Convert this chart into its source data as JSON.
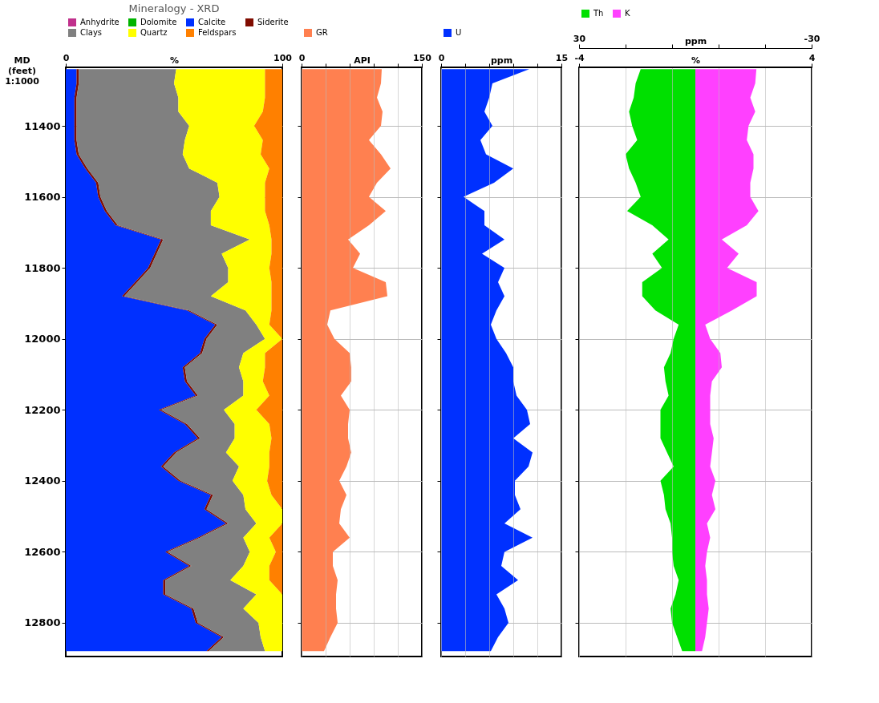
{
  "chart_data": [
    {
      "type": "area",
      "title": "Mineralogy - XRD",
      "xlabel": "%",
      "ylabel": "MD\n(feet)\n1:1000",
      "orientation": "horizontal",
      "stacked": true,
      "legend": "top",
      "grid": "y",
      "x": [
        11240,
        11280,
        11320,
        11360,
        11400,
        11440,
        11480,
        11520,
        11560,
        11600,
        11640,
        11680,
        11720,
        11760,
        11800,
        11840,
        11880,
        11920,
        11960,
        12000,
        12040,
        12080,
        12120,
        12160,
        12200,
        12240,
        12280,
        12320,
        12360,
        12400,
        12440,
        12480,
        12520,
        12560,
        12600,
        12640,
        12680,
        12720,
        12760,
        12800,
        12840,
        12880
      ],
      "xlim": [
        0,
        100
      ],
      "xticks": [
        0,
        100
      ],
      "ylim": [
        12895,
        11235
      ],
      "yticks": [
        11400,
        11600,
        11800,
        12000,
        12200,
        12400,
        12600,
        12800
      ],
      "series": [
        {
          "name": "Anhydrite",
          "color": "#c0308c",
          "values": [
            null,
            null,
            null,
            null,
            null,
            null,
            null,
            null,
            null,
            null,
            null,
            null,
            null,
            null,
            null,
            null,
            null,
            null,
            null,
            null,
            null,
            null,
            null,
            null,
            null,
            null,
            null,
            null,
            null,
            null,
            null,
            null,
            null,
            null,
            null,
            null,
            null,
            null,
            null,
            null,
            null,
            null
          ]
        },
        {
          "name": "Dolomite",
          "color": "#00b400",
          "values": [
            null,
            null,
            null,
            null,
            null,
            null,
            null,
            null,
            null,
            null,
            null,
            null,
            null,
            null,
            null,
            null,
            null,
            null,
            null,
            null,
            null,
            null,
            null,
            null,
            null,
            null,
            null,
            null,
            null,
            null,
            null,
            null,
            null,
            null,
            null,
            null,
            null,
            null,
            null,
            null,
            null,
            null
          ]
        },
        {
          "name": "Calcite",
          "color": "#0030ff",
          "values": [
            5,
            5,
            4,
            4,
            4,
            4,
            5,
            9,
            14,
            15,
            18,
            23,
            44,
            41,
            38,
            32,
            26,
            56,
            69,
            64,
            62,
            54,
            55,
            60,
            43,
            55,
            61,
            50,
            44,
            52,
            67,
            64,
            74,
            61,
            46,
            57,
            45,
            45,
            58,
            60,
            72,
            65
          ]
        },
        {
          "name": "Siderite",
          "color": "#800c00",
          "values": [
            1,
            1,
            1,
            1,
            1,
            1,
            1,
            1,
            1,
            1,
            1,
            1,
            1,
            1,
            1,
            1,
            1,
            1,
            1,
            1,
            1,
            1,
            1,
            1,
            1,
            1,
            1,
            1,
            1,
            1,
            1,
            1,
            1,
            1,
            1,
            1,
            1,
            1,
            1,
            1,
            1,
            1
          ]
        },
        {
          "name": "Clays",
          "color": "#808080",
          "values": [
            45,
            44,
            47,
            47,
            52,
            50,
            48,
            47,
            55,
            55,
            48,
            43,
            40,
            30,
            36,
            42,
            40,
            26,
            18,
            27,
            19,
            25,
            26,
            21,
            29,
            22,
            16,
            23,
            35,
            24,
            14,
            18,
            13,
            20,
            38,
            24,
            30,
            42,
            23,
            28,
            17,
            26
          ]
        },
        {
          "name": "Quartz",
          "color": "#ffff00",
          "values": [
            41,
            42,
            40,
            39,
            30,
            36,
            36,
            37,
            22,
            21,
            25,
            27,
            10,
            23,
            19,
            20,
            28,
            12,
            6,
            8,
            10,
            12,
            9,
            12,
            15,
            16,
            17,
            20,
            14,
            16,
            13,
            17,
            12,
            12,
            12,
            12,
            18,
            12,
            18,
            11,
            10,
            8
          ]
        },
        {
          "name": "Feldspars",
          "color": "#ff8000",
          "values": [
            8,
            8,
            8,
            9,
            13,
            9,
            10,
            6,
            8,
            8,
            8,
            6,
            5,
            5,
            6,
            5,
            5,
            5,
            6,
            0,
            8,
            8,
            9,
            6,
            12,
            6,
            5,
            6,
            6,
            7,
            5,
            0,
            0,
            6,
            3,
            6,
            6,
            0,
            0,
            0,
            0,
            0
          ]
        }
      ]
    },
    {
      "type": "area",
      "xlabel": "API",
      "orientation": "horizontal",
      "legend": "top",
      "grid": true,
      "tick_labels": "x",
      "x": [
        11240,
        11280,
        11320,
        11360,
        11400,
        11440,
        11480,
        11520,
        11560,
        11600,
        11640,
        11680,
        11720,
        11760,
        11800,
        11840,
        11880,
        11920,
        11960,
        12000,
        12040,
        12080,
        12120,
        12160,
        12200,
        12240,
        12280,
        12320,
        12360,
        12400,
        12440,
        12480,
        12520,
        12560,
        12600,
        12640,
        12680,
        12720,
        12760,
        12800,
        12840,
        12880
      ],
      "xlim": [
        0,
        150
      ],
      "xticks": [
        0,
        {
          "value": 30,
          "label": null
        },
        {
          "value": 60,
          "label": null
        },
        {
          "value": 90,
          "label": null
        },
        {
          "value": 120,
          "label": null
        },
        150
      ],
      "ylim": [
        12895,
        11235
      ],
      "yticks": [
        11400,
        11600,
        11800,
        12000,
        12200,
        12400,
        12600,
        12800
      ],
      "series": [
        {
          "name": "GR",
          "color": "#ff8050",
          "values": [
            100,
            99,
            94,
            101,
            99,
            84,
            99,
            111,
            94,
            84,
            105,
            84,
            58,
            73,
            64,
            105,
            107,
            36,
            32,
            41,
            60,
            62,
            62,
            49,
            60,
            58,
            58,
            62,
            56,
            47,
            56,
            49,
            47,
            60,
            39,
            39,
            45,
            43,
            43,
            45,
            36,
            28
          ]
        }
      ]
    },
    {
      "type": "area",
      "xlabel": "ppm",
      "orientation": "horizontal",
      "legend": "top",
      "grid": true,
      "tick_labels": "x",
      "x": [
        11240,
        11280,
        11320,
        11360,
        11400,
        11440,
        11480,
        11520,
        11560,
        11600,
        11640,
        11680,
        11720,
        11760,
        11800,
        11840,
        11880,
        11920,
        11960,
        12000,
        12040,
        12080,
        12120,
        12160,
        12200,
        12240,
        12280,
        12320,
        12360,
        12400,
        12440,
        12480,
        12520,
        12560,
        12600,
        12640,
        12680,
        12720,
        12760,
        12800,
        12840,
        12880
      ],
      "xlim": [
        0,
        15
      ],
      "xticks": [
        0,
        {
          "value": 3,
          "label": null
        },
        {
          "value": 6,
          "label": null
        },
        {
          "value": 9,
          "label": null
        },
        {
          "value": 12,
          "label": null
        },
        15
      ],
      "ylim": [
        12895,
        11235
      ],
      "yticks": [
        11400,
        11600,
        11800,
        12000,
        12200,
        12400,
        12600,
        12800
      ],
      "series": [
        {
          "name": "U",
          "color": "#0030ff",
          "values": [
            11,
            6.4,
            6.0,
            5.4,
            6.4,
            4.9,
            5.6,
            9.0,
            6.6,
            2.8,
            5.4,
            5.4,
            7.9,
            5.1,
            7.9,
            7.1,
            7.9,
            6.9,
            6.2,
            6.9,
            8.1,
            9.0,
            9.0,
            9.4,
            10.7,
            11.1,
            9.0,
            11.4,
            10.9,
            9.2,
            9.2,
            9.9,
            7.9,
            11.4,
            7.9,
            7.5,
            9.6,
            6.9,
            7.9,
            8.4,
            7.1,
            6.2
          ]
        }
      ]
    },
    {
      "type": "area",
      "xlabel": "ppm",
      "x2label": "%",
      "orientation": "horizontal",
      "legend": "top",
      "grid": true,
      "tick_labels": "x",
      "x": [
        11240,
        11280,
        11320,
        11360,
        11400,
        11440,
        11480,
        11520,
        11560,
        11600,
        11640,
        11680,
        11720,
        11760,
        11800,
        11840,
        11880,
        11920,
        11960,
        12000,
        12040,
        12080,
        12120,
        12160,
        12200,
        12240,
        12280,
        12320,
        12360,
        12400,
        12440,
        12480,
        12520,
        12560,
        12600,
        12640,
        12680,
        12720,
        12760,
        12800,
        12840,
        12880
      ],
      "xlim": [
        30,
        -30
      ],
      "xticks": [
        30,
        {
          "value": 18,
          "label": null
        },
        {
          "value": 6,
          "label": null
        },
        {
          "value": -6,
          "label": null
        },
        {
          "value": -18,
          "label": null
        },
        -30
      ],
      "x2lim": [
        -4,
        4
      ],
      "x2ticks": [
        -4,
        4
      ],
      "ylim": [
        12895,
        11235
      ],
      "yticks": [
        11400,
        11600,
        11800,
        12000,
        12200,
        12400,
        12600,
        12800
      ],
      "series": [
        {
          "name": "Th",
          "color": "#00e000",
          "values": [
            14.1,
            15.4,
            15.9,
            17.1,
            16.3,
            15,
            18,
            17.1,
            15.4,
            14.1,
            17.6,
            11.1,
            6.9,
            11.1,
            8.6,
            13.7,
            13.7,
            10.3,
            4.3,
            5.6,
            6.4,
            8.1,
            7.7,
            6.9,
            9,
            9,
            9,
            7.3,
            5.6,
            9,
            8.1,
            7.7,
            6.4,
            6,
            6,
            5.6,
            4.3,
            5.1,
            6.4,
            6,
            4.7,
            3.4
          ]
        },
        {
          "name": "K",
          "color": "#ff40ff",
          "axis": "x2",
          "values": [
            2.1,
            2.06,
            1.89,
            2.06,
            1.83,
            1.77,
            2.0,
            2.0,
            1.89,
            1.89,
            2.17,
            1.77,
            0.91,
            1.49,
            1.09,
            2.11,
            2.11,
            1.26,
            0.34,
            0.51,
            0.86,
            0.91,
            0.57,
            0.51,
            0.51,
            0.51,
            0.63,
            0.57,
            0.51,
            0.69,
            0.57,
            0.69,
            0.4,
            0.51,
            0.4,
            0.34,
            0.4,
            0.4,
            0.46,
            0.4,
            0.34,
            0.23
          ]
        }
      ]
    }
  ]
}
